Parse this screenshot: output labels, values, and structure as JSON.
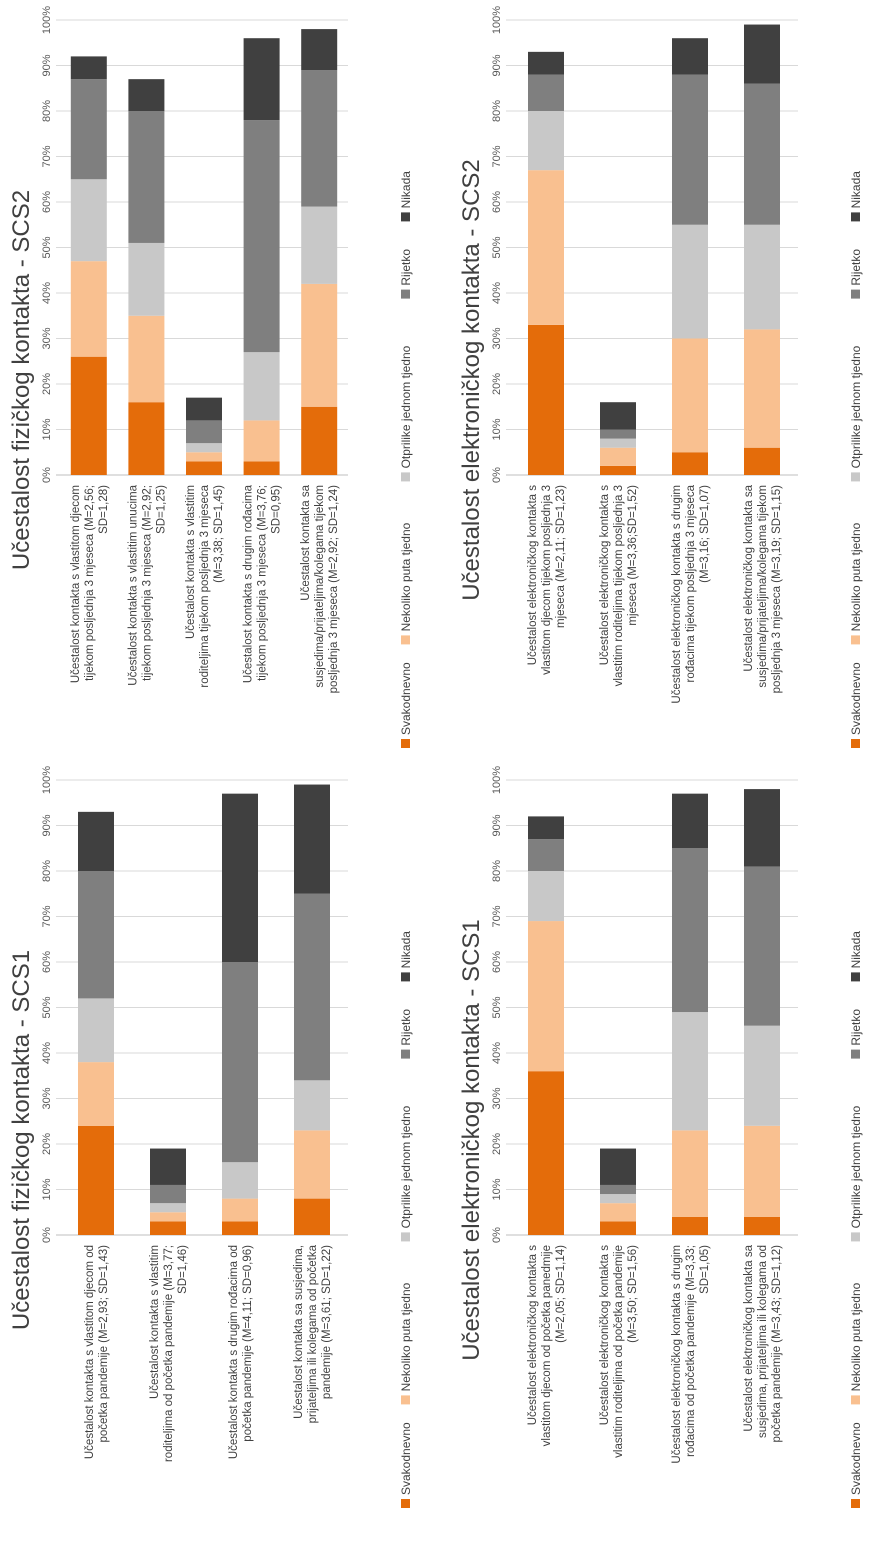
{
  "colors": {
    "Svakodnevno": "#e46c0a",
    "Nekoliko puta tjedno": "#f9c090",
    "Otprilike jednom tjedno": "#c8c8c8",
    "Rijetko": "#7f7f7f",
    "Nikada": "#404040"
  },
  "chart_data": [
    {
      "type": "bar",
      "stacked": true,
      "orientation": "vertical",
      "title": "Učestalost fizičkog kontakta - SCS1",
      "ylim": [
        0,
        100
      ],
      "yticks": [
        "0%",
        "10%",
        "20%",
        "30%",
        "40%",
        "50%",
        "60%",
        "70%",
        "80%",
        "90%",
        "100%"
      ],
      "grid": true,
      "legend_position": "bottom",
      "categories": [
        "Učestalost kontakta s vlastitom djecom od početka pandemije (M=2,93; SD=1,43)",
        "Učestalost kontakta s vlastitim roditeljima od početka pandemije (M=3,77; SD=1,46)",
        "Učestalost kontakta s drugim rođacima od početka pandemije (M=4,11; SD=0,96)",
        "Učestalost kontakta sa susjedima, prijateljima ili kolegama od početka pandemije (M=3,61; SD=1,22)"
      ],
      "series": [
        {
          "name": "Svakodnevno",
          "values": [
            24,
            3,
            3,
            8
          ]
        },
        {
          "name": "Nekoliko puta tjedno",
          "values": [
            14,
            2,
            5,
            15
          ]
        },
        {
          "name": "Otprilike jednom tjedno",
          "values": [
            14,
            2,
            8,
            11
          ]
        },
        {
          "name": "Rijetko",
          "values": [
            28,
            4,
            44,
            41
          ]
        },
        {
          "name": "Nikada",
          "values": [
            13,
            8,
            37,
            24
          ]
        }
      ]
    },
    {
      "type": "bar",
      "stacked": true,
      "orientation": "vertical",
      "title": "Učestalost fizičkog kontakta - SCS2",
      "ylim": [
        0,
        100
      ],
      "yticks": [
        "0%",
        "10%",
        "20%",
        "30%",
        "40%",
        "50%",
        "60%",
        "70%",
        "80%",
        "90%",
        "100%"
      ],
      "grid": true,
      "legend_position": "bottom",
      "categories": [
        "Učestalost kontakta s vlastitom djecom tijekom posljednja 3 mjeseca (M=2,56; SD=1,28)",
        "Učestalost kontakta s vlastitim unucima tijekom posljednja 3 mjeseca (M=2,92; SD=1,25)",
        "Učestalost kontakta s vlastitim roditeljima tijekom posljednja 3 mjeseca (M=3,38; SD=1,45)",
        "Učestalost kontakta s drugim rođacima tijekom posljednja 3 mjeseca (M=3,76; SD=0,95)",
        "Učestalost kontakta sa susjedima/prijateljima/kolegama tijekom posljednja 3 mjeseca (M=2,92; SD=1,24)"
      ],
      "series": [
        {
          "name": "Svakodnevno",
          "values": [
            26,
            16,
            3,
            3,
            15
          ]
        },
        {
          "name": "Nekoliko puta tjedno",
          "values": [
            21,
            19,
            2,
            9,
            27
          ]
        },
        {
          "name": "Otprilike jednom tjedno",
          "values": [
            18,
            16,
            2,
            15,
            17
          ]
        },
        {
          "name": "Rijetko",
          "values": [
            22,
            29,
            5,
            51,
            30
          ]
        },
        {
          "name": "Nikada",
          "values": [
            5,
            7,
            5,
            18,
            9
          ]
        }
      ]
    },
    {
      "type": "bar",
      "stacked": true,
      "orientation": "vertical",
      "title": "Učestalost elektroničkog kontakta - SCS1",
      "ylim": [
        0,
        100
      ],
      "yticks": [
        "0%",
        "10%",
        "20%",
        "30%",
        "40%",
        "50%",
        "60%",
        "70%",
        "80%",
        "90%",
        "100%"
      ],
      "grid": true,
      "legend_position": "bottom",
      "categories": [
        "Učestalost elektroničkog kontakta s vlastitom djecom od početka panedmije (M=2,05; SD=1,14)",
        "Učestalost elektroničkog kontakta s vlastitim roditeljima od početka pandemije (M=3,50; SD=1,56)",
        "Učestalost elektroničkog kontakta s drugim rođacima od početka pandemije (M=3,33; SD=1,05)",
        "Učestalost elektroničkog kontakta sa susjedima, prijateljima ili kolegama od početka pandemije (M=3,43; SD=1,12)"
      ],
      "series": [
        {
          "name": "Svakodnevno",
          "values": [
            36,
            3,
            4,
            4
          ]
        },
        {
          "name": "Nekoliko puta tjedno",
          "values": [
            33,
            4,
            19,
            20
          ]
        },
        {
          "name": "Otprilike jednom tjedno",
          "values": [
            11,
            2,
            26,
            22
          ]
        },
        {
          "name": "Rijetko",
          "values": [
            7,
            2,
            36,
            35
          ]
        },
        {
          "name": "Nikada",
          "values": [
            5,
            8,
            12,
            17
          ]
        }
      ]
    },
    {
      "type": "bar",
      "stacked": true,
      "orientation": "vertical",
      "title": "Učestalost elektroničkog kontakta - SCS2",
      "ylim": [
        0,
        100
      ],
      "yticks": [
        "0%",
        "10%",
        "20%",
        "30%",
        "40%",
        "50%",
        "60%",
        "70%",
        "80%",
        "90%",
        "100%"
      ],
      "grid": true,
      "legend_position": "bottom",
      "categories": [
        "Učestalost elektroničkog kontakta s vlastitom djecom tijekom posljednja 3 mjeseca (M=2,11; SD=1,23)",
        "Učestalost elektroničkog kontakta s vlastitim roditeljima tijekom posljednja 3 mjeseca (M=3,36;SD=1,52)",
        "Učestalost elektroničkog kontakta s drugim rođacima tijekom posljednja 3 mjeseca (M=3,16; SD=1,07)",
        "Učestalost elektroničkog kontakta sa susjedima/prijateljima/kolegama tijekom posljednja 3 mjeseca (M=3,19; SD=1,15)"
      ],
      "series": [
        {
          "name": "Svakodnevno",
          "values": [
            33,
            2,
            5,
            6
          ]
        },
        {
          "name": "Nekoliko puta tjedno",
          "values": [
            34,
            4,
            25,
            26
          ]
        },
        {
          "name": "Otprilike jednom tjedno",
          "values": [
            13,
            2,
            25,
            23
          ]
        },
        {
          "name": "Rijetko",
          "values": [
            8,
            2,
            33,
            31
          ]
        },
        {
          "name": "Nikada",
          "values": [
            5,
            6,
            8,
            13
          ]
        }
      ]
    }
  ]
}
